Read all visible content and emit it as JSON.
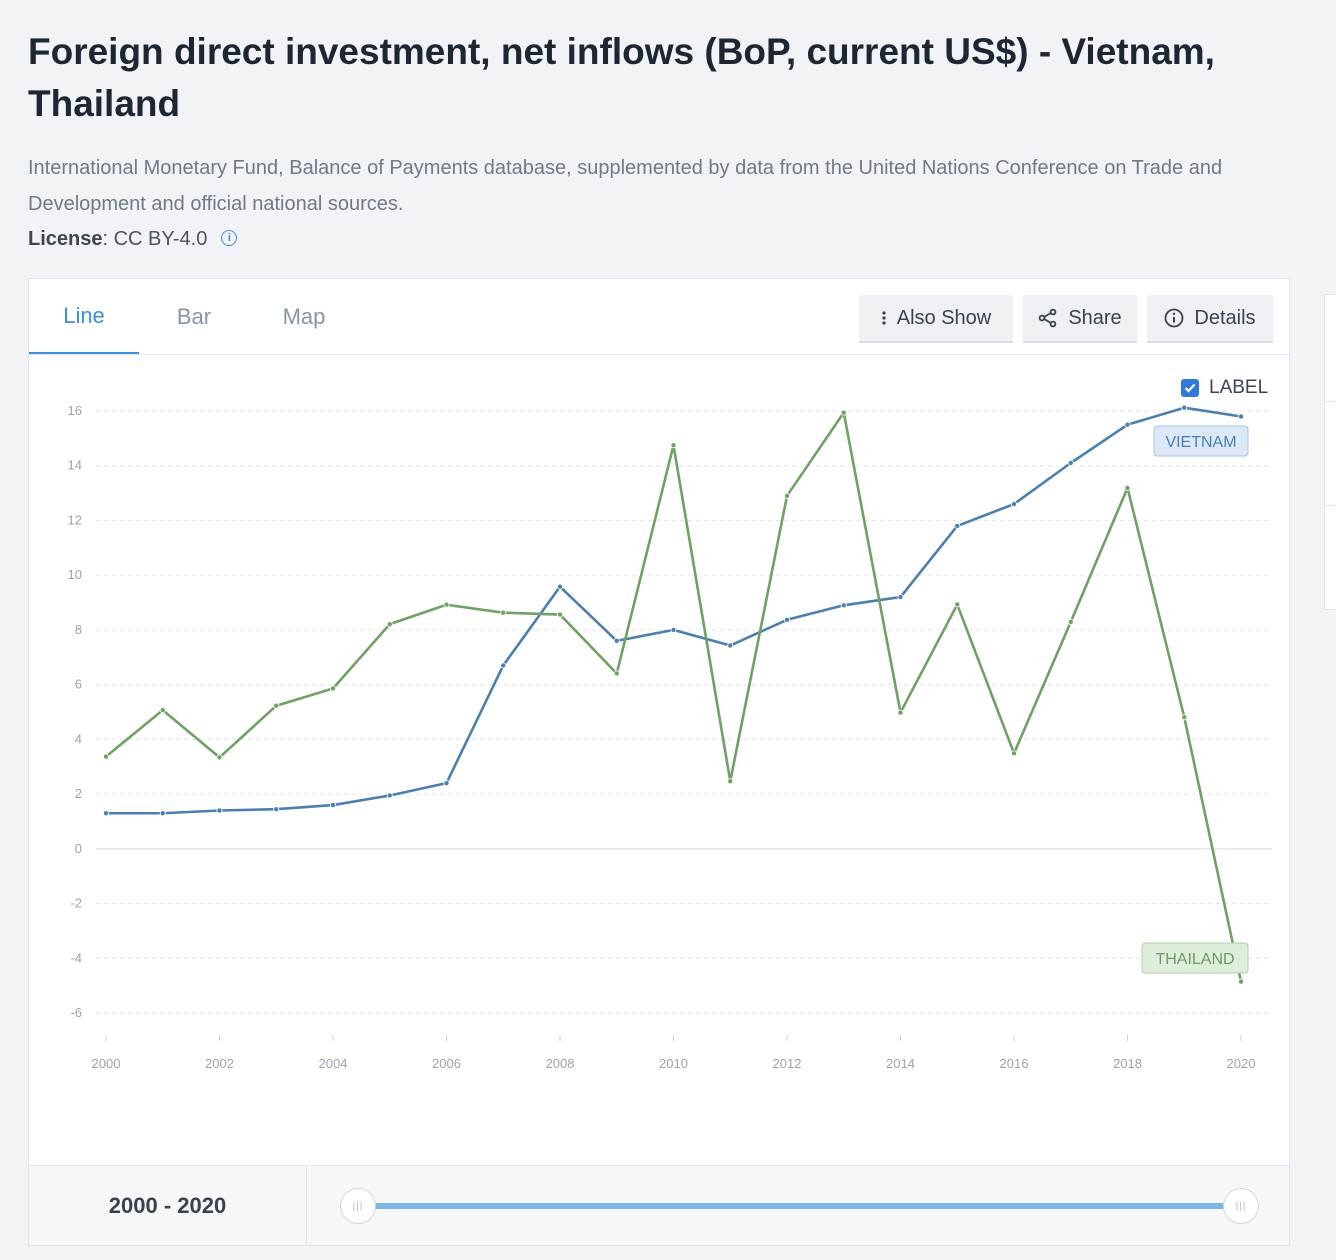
{
  "page": {
    "title": "Foreign direct investment, net inflows (BoP, current US$) - Vietnam, Thailand",
    "source": "International Monetary Fund, Balance of Payments database, supplemented by data from the United Nations Conference on Trade and Development and official national sources.",
    "license_label": "License",
    "license_value": " : CC BY-4.0",
    "info_icon": "info-icon"
  },
  "tabs": [
    {
      "label": "Line",
      "active": true
    },
    {
      "label": "Bar",
      "active": false
    },
    {
      "label": "Map",
      "active": false
    }
  ],
  "toolbar": {
    "also_show": "Also Show",
    "share": "Share",
    "details": "Details",
    "also_show_icon": "more-vertical-icon",
    "share_icon": "share-icon",
    "details_icon": "info-icon"
  },
  "label_toggle": {
    "label": "LABEL",
    "checked": true
  },
  "range": {
    "label": "2000 - 2020",
    "start": 2000,
    "end": 2020
  },
  "colors": {
    "vietnam": "#4a7fb0",
    "thailand": "#6fa164",
    "accent": "#3b8ed8"
  },
  "chart_data": {
    "type": "line",
    "x": [
      2000,
      2001,
      2002,
      2003,
      2004,
      2005,
      2006,
      2007,
      2008,
      2009,
      2010,
      2011,
      2012,
      2013,
      2014,
      2015,
      2016,
      2017,
      2018,
      2019,
      2020
    ],
    "series": [
      {
        "name": "VIETNAM",
        "color": "#4a7fb0",
        "values": [
          1.3,
          1.3,
          1.4,
          1.45,
          1.6,
          1.95,
          2.4,
          6.7,
          9.58,
          7.6,
          8.0,
          7.43,
          8.37,
          8.9,
          9.2,
          11.8,
          12.6,
          14.1,
          15.5,
          16.12,
          15.8
        ]
      },
      {
        "name": "THAILAND",
        "color": "#6fa164",
        "values": [
          3.37,
          5.07,
          3.34,
          5.23,
          5.86,
          8.21,
          8.92,
          8.63,
          8.56,
          6.41,
          14.75,
          2.47,
          12.9,
          15.94,
          4.98,
          8.93,
          3.49,
          8.29,
          13.19,
          4.81,
          -4.85
        ]
      }
    ],
    "xticks": [
      "2000",
      "2002",
      "2004",
      "2006",
      "2008",
      "2010",
      "2012",
      "2014",
      "2016",
      "2018",
      "2020"
    ],
    "yticks": [
      "16",
      "14",
      "12",
      "10",
      "8",
      "6",
      "4",
      "2",
      "0",
      "-2",
      "-4",
      "-6"
    ],
    "ylim": [
      -6,
      16
    ],
    "xlim": [
      2000,
      2020
    ],
    "grid": true,
    "end_labels": true
  }
}
